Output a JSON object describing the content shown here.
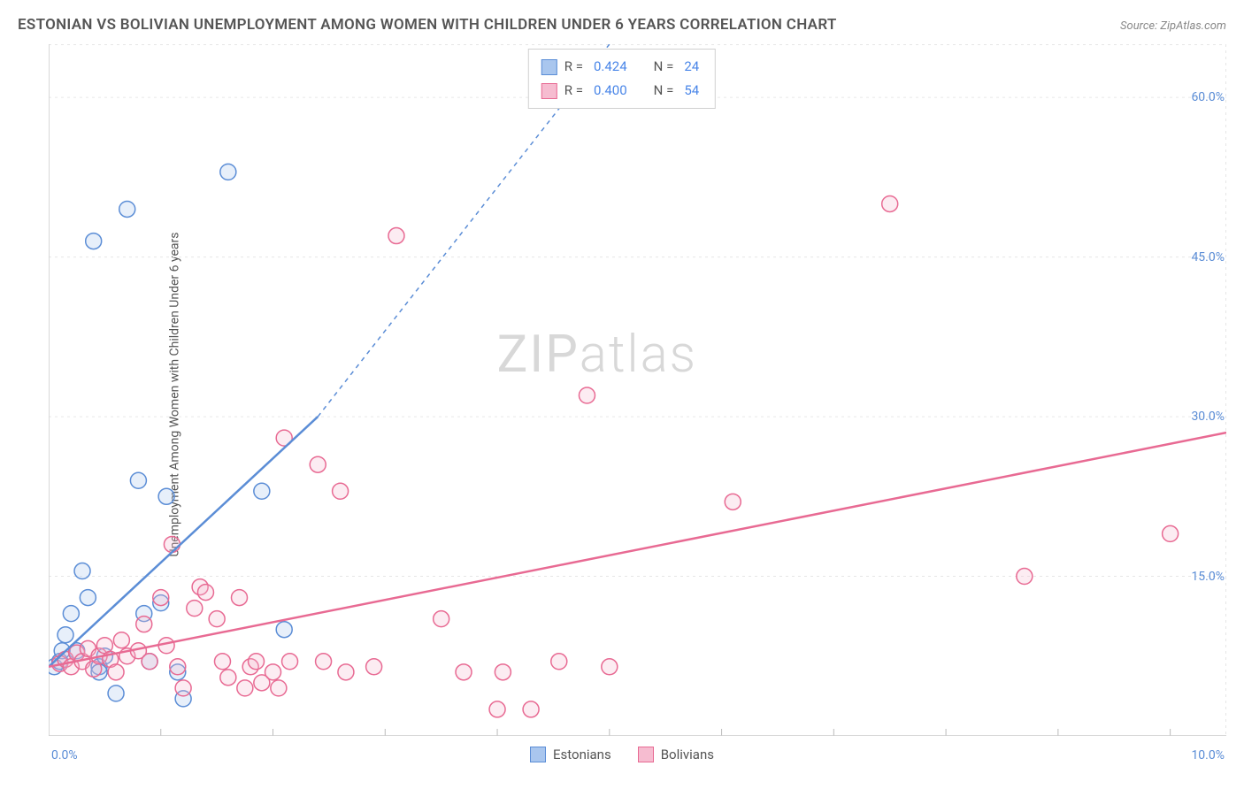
{
  "title": "ESTONIAN VS BOLIVIAN UNEMPLOYMENT AMONG WOMEN WITH CHILDREN UNDER 6 YEARS CORRELATION CHART",
  "source": "Source: ZipAtlas.com",
  "watermark_zip": "ZIP",
  "watermark_atlas": "atlas",
  "y_axis_label": "Unemployment Among Women with Children Under 6 years",
  "chart": {
    "type": "scatter",
    "background_color": "#ffffff",
    "grid_color": "#e6e6e6",
    "axis_color": "#cccccc",
    "tick_color": "#bbbbbb",
    "x_min": 0,
    "x_max": 10.5,
    "y_min": 0,
    "y_max": 65,
    "x_origin_label": "0.0%",
    "x_max_label": "10.0%",
    "y_ticks": [
      {
        "v": 15,
        "label": "15.0%"
      },
      {
        "v": 30,
        "label": "30.0%"
      },
      {
        "v": 45,
        "label": "45.0%"
      },
      {
        "v": 60,
        "label": "60.0%"
      }
    ],
    "x_sub_ticks": [
      1,
      2,
      3,
      4,
      5,
      6,
      7,
      8,
      9,
      10
    ],
    "marker_radius": 9,
    "marker_stroke_width": 1.5,
    "marker_fill_opacity": 0.28,
    "series": [
      {
        "name": "Estonians",
        "color_stroke": "#5b8dd6",
        "color_fill": "#a9c6ee",
        "r_label": "R =",
        "r_value": "0.424",
        "n_label": "N =",
        "n_value": "24",
        "trend": {
          "x1": 0,
          "y1": 6.5,
          "x2": 2.4,
          "y2": 30,
          "dash_to_x": 5.0,
          "dash_to_y": 65,
          "width": 2.5
        },
        "points": [
          [
            0.05,
            6.5
          ],
          [
            0.1,
            7
          ],
          [
            0.12,
            8
          ],
          [
            0.15,
            9.5
          ],
          [
            0.2,
            11.5
          ],
          [
            0.25,
            8
          ],
          [
            0.3,
            15.5
          ],
          [
            0.35,
            13
          ],
          [
            0.4,
            46.5
          ],
          [
            0.45,
            6.5
          ],
          [
            0.5,
            7.5
          ],
          [
            0.7,
            49.5
          ],
          [
            0.8,
            24
          ],
          [
            0.85,
            11.5
          ],
          [
            0.9,
            7
          ],
          [
            1.0,
            12.5
          ],
          [
            1.05,
            22.5
          ],
          [
            1.15,
            6
          ],
          [
            1.2,
            3.5
          ],
          [
            1.6,
            53
          ],
          [
            1.9,
            23
          ],
          [
            2.1,
            10
          ],
          [
            0.6,
            4
          ],
          [
            0.45,
            6
          ]
        ]
      },
      {
        "name": "Bolivians",
        "color_stroke": "#e86a93",
        "color_fill": "#f6bcd0",
        "r_label": "R =",
        "r_value": "0.400",
        "n_label": "N =",
        "n_value": "54",
        "trend": {
          "x1": 0,
          "y1": 6.5,
          "x2": 10.5,
          "y2": 28.5,
          "width": 2.5
        },
        "points": [
          [
            0.1,
            6.8
          ],
          [
            0.15,
            7.2
          ],
          [
            0.2,
            6.5
          ],
          [
            0.25,
            7.8
          ],
          [
            0.3,
            7
          ],
          [
            0.35,
            8.2
          ],
          [
            0.4,
            6.3
          ],
          [
            0.45,
            7.5
          ],
          [
            0.5,
            8.5
          ],
          [
            0.55,
            7.2
          ],
          [
            0.6,
            6
          ],
          [
            0.65,
            9
          ],
          [
            0.7,
            7.5
          ],
          [
            0.8,
            8
          ],
          [
            0.85,
            10.5
          ],
          [
            0.9,
            7
          ],
          [
            1.0,
            13
          ],
          [
            1.05,
            8.5
          ],
          [
            1.1,
            18
          ],
          [
            1.15,
            6.5
          ],
          [
            1.2,
            4.5
          ],
          [
            1.3,
            12
          ],
          [
            1.35,
            14
          ],
          [
            1.4,
            13.5
          ],
          [
            1.5,
            11
          ],
          [
            1.55,
            7
          ],
          [
            1.6,
            5.5
          ],
          [
            1.7,
            13
          ],
          [
            1.75,
            4.5
          ],
          [
            1.8,
            6.5
          ],
          [
            1.85,
            7
          ],
          [
            1.9,
            5
          ],
          [
            2.0,
            6
          ],
          [
            2.05,
            4.5
          ],
          [
            2.1,
            28
          ],
          [
            2.15,
            7
          ],
          [
            2.4,
            25.5
          ],
          [
            2.45,
            7
          ],
          [
            2.6,
            23
          ],
          [
            2.65,
            6
          ],
          [
            2.9,
            6.5
          ],
          [
            3.1,
            47
          ],
          [
            3.5,
            11
          ],
          [
            3.7,
            6
          ],
          [
            4.0,
            2.5
          ],
          [
            4.05,
            6
          ],
          [
            4.3,
            2.5
          ],
          [
            4.55,
            7
          ],
          [
            4.8,
            32
          ],
          [
            5.0,
            6.5
          ],
          [
            6.1,
            22
          ],
          [
            7.5,
            50
          ],
          [
            8.7,
            15
          ],
          [
            10.0,
            19
          ]
        ]
      }
    ]
  },
  "legend_bottom": [
    {
      "label": "Estonians",
      "stroke": "#5b8dd6",
      "fill": "#a9c6ee"
    },
    {
      "label": "Bolivians",
      "stroke": "#e86a93",
      "fill": "#f6bcd0"
    }
  ]
}
